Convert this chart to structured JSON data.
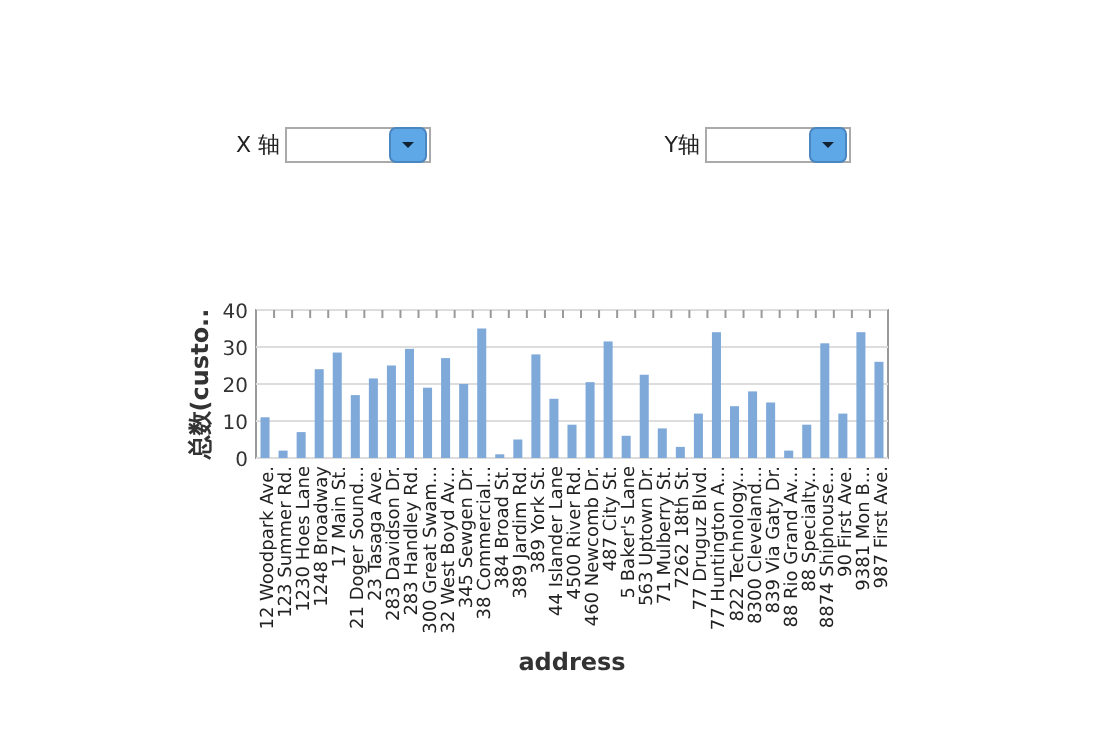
{
  "chart_data": {
    "type": "bar",
    "xlabel": "address",
    "ylabel": "总数(custo..",
    "categories": [
      "12 Woodpark Ave.",
      "123 Summer Rd.",
      "1230 Hoes Lane",
      "1248 Broadway",
      "17 Main St.",
      "21 Doger Sound...",
      "23 Tasaga Ave.",
      "283 Davidson Dr.",
      "283 Handley Rd.",
      "300 Great Swam...",
      "32 West Boyd Av...",
      "345 Sewgen Dr.",
      "38 Commercial...",
      "384 Broad St.",
      "389 Jardim Rd.",
      "389 York St.",
      "44 Islander Lane",
      "4500 River Rd.",
      "460 Newcomb Dr.",
      "487 City St.",
      "5 Baker's Lane",
      "563 Uptown Dr.",
      "71 Mulberry St.",
      "7262 18th St.",
      "77 Druguz Blvd.",
      "77 Huntington A...",
      "822 Technology...",
      "8300 Cleveland...",
      "839 Via Gaty Dr.",
      "88 Rio Grand Av...",
      "88 Specialty...",
      "8874 Shiphouse...",
      "90 First Ave.",
      "9381 Mon B...",
      "987 First Ave."
    ],
    "values": [
      11,
      2,
      7,
      24,
      28.5,
      17,
      21.5,
      25,
      29.5,
      19,
      27,
      20,
      35,
      1,
      5,
      28,
      16,
      9,
      20.5,
      31.5,
      6,
      22.5,
      8,
      3,
      12,
      34,
      14,
      18,
      15,
      2,
      9,
      31,
      12,
      34,
      26
    ],
    "color": "#7fa9d9",
    "ylim": [
      0,
      40
    ],
    "yticks": [
      0,
      10,
      20,
      30,
      40
    ],
    "grid": "y",
    "annotations": [
      "X 轴",
      "Y轴"
    ]
  }
}
